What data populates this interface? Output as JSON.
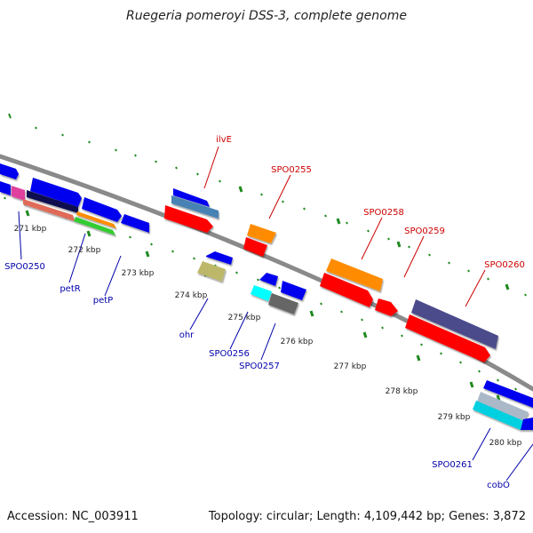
{
  "title": "Ruegeria pomeroyi DSS-3, complete genome",
  "footer": {
    "accession": "Accession: NC_003911",
    "summary": "Topology: circular; Length: 4,109,442 bp; Genes: 3,872"
  },
  "colors": {
    "backbone": "#8a8a8a",
    "tick": "#1f8a1f",
    "forward_label": "#cc0000",
    "reverse_label": "#0000aa"
  },
  "scale_labels": [
    "271 kbp",
    "272 kbp",
    "273 kbp",
    "274 kbp",
    "275 kbp",
    "276 kbp",
    "277 kbp",
    "278 kbp",
    "279 kbp",
    "280 kbp"
  ],
  "forward_labels": [
    "ilvE",
    "SPO0255",
    "SPO0258",
    "SPO0259",
    "SPO0260"
  ],
  "reverse_labels": [
    "SPO0250",
    "petR",
    "petP",
    "ohr",
    "SPO0256",
    "SPO0257",
    "SPO0261",
    "cobO"
  ]
}
